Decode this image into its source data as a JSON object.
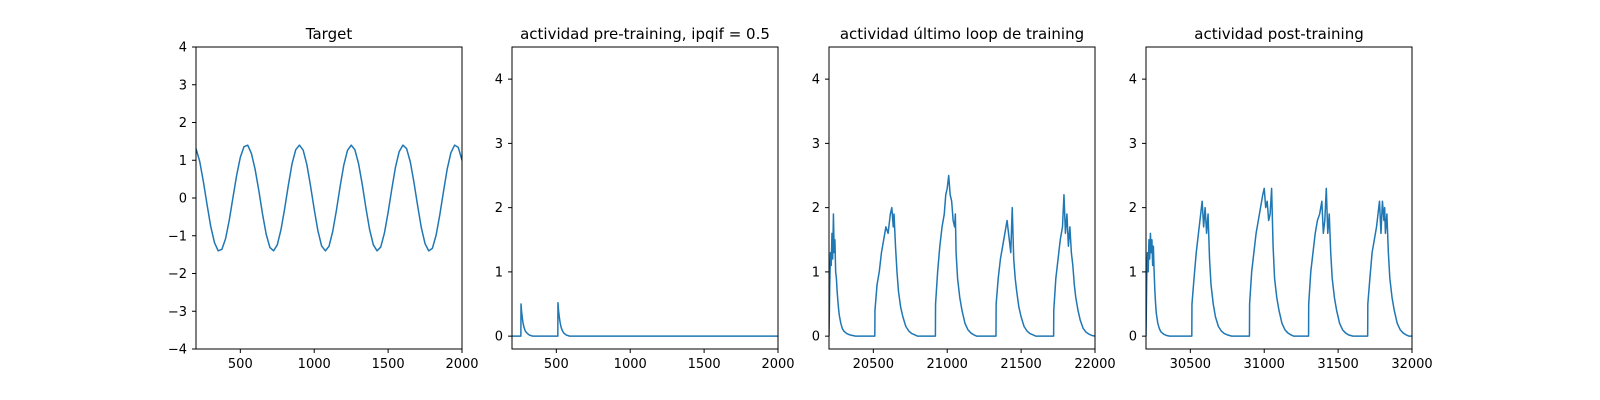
{
  "chart_data": [
    {
      "type": "line",
      "title": "Target",
      "xlim": [
        200,
        2000
      ],
      "ylim": [
        -4,
        4
      ],
      "xticks": [
        500,
        1000,
        1500,
        2000
      ],
      "yticks": [
        -4,
        -3,
        -2,
        -1,
        0,
        1,
        2,
        3,
        4
      ],
      "ytick_labels": [
        "−4",
        "−3",
        "−2",
        "−1",
        "0",
        "1",
        "2",
        "3",
        "4"
      ],
      "series": [
        {
          "color": "#1f77b4",
          "x": [
            200,
            225,
            250,
            275,
            300,
            325,
            350,
            375,
            400,
            425,
            450,
            475,
            500,
            525,
            550,
            575,
            600,
            625,
            650,
            675,
            700,
            725,
            750,
            775,
            800,
            825,
            850,
            875,
            900,
            925,
            950,
            975,
            1000,
            1025,
            1050,
            1075,
            1100,
            1125,
            1150,
            1175,
            1200,
            1225,
            1250,
            1275,
            1300,
            1325,
            1350,
            1375,
            1400,
            1425,
            1450,
            1475,
            1500,
            1525,
            1550,
            1575,
            1600,
            1625,
            1650,
            1675,
            1700,
            1725,
            1750,
            1775,
            1800,
            1825,
            1850,
            1875,
            1900,
            1925,
            1950,
            1975,
            2000
          ],
          "y": [
            1.31,
            0.97,
            0.43,
            -0.18,
            -0.76,
            -1.18,
            -1.4,
            -1.36,
            -1.08,
            -0.59,
            0.01,
            0.6,
            1.08,
            1.36,
            1.4,
            1.18,
            0.76,
            0.2,
            -0.42,
            -0.96,
            -1.31,
            -1.4,
            -1.24,
            -0.84,
            -0.28,
            0.34,
            0.91,
            1.28,
            1.4,
            1.27,
            0.89,
            0.32,
            -0.3,
            -0.87,
            -1.27,
            -1.4,
            -1.28,
            -0.89,
            -0.33,
            0.3,
            0.87,
            1.26,
            1.4,
            1.28,
            0.91,
            0.36,
            -0.27,
            -0.84,
            -1.24,
            -1.4,
            -1.3,
            -0.93,
            -0.38,
            0.24,
            0.82,
            1.23,
            1.4,
            1.31,
            0.96,
            0.41,
            -0.21,
            -0.79,
            -1.21,
            -1.4,
            -1.33,
            -0.98,
            -0.44,
            0.18,
            0.77,
            1.2,
            1.4,
            1.34,
            1.0
          ]
        }
      ]
    },
    {
      "type": "line",
      "title": "actividad pre-training, ipqif = 0.5",
      "xlim": [
        200,
        2000
      ],
      "ylim": [
        -0.2,
        4.5
      ],
      "xticks": [
        500,
        1000,
        1500,
        2000
      ],
      "yticks": [
        0,
        1,
        2,
        3,
        4
      ],
      "ytick_labels": [
        "0",
        "1",
        "2",
        "3",
        "4"
      ],
      "series": [
        {
          "color": "#1f77b4",
          "x": [
            200,
            260,
            261,
            265,
            270,
            275,
            280,
            285,
            290,
            300,
            310,
            320,
            340,
            510,
            511,
            515,
            520,
            525,
            530,
            535,
            540,
            550,
            560,
            570,
            590,
            2000
          ],
          "y": [
            0,
            0,
            0.5,
            0.38,
            0.28,
            0.2,
            0.15,
            0.11,
            0.08,
            0.05,
            0.03,
            0.015,
            0,
            0,
            0.52,
            0.4,
            0.3,
            0.22,
            0.16,
            0.12,
            0.09,
            0.05,
            0.03,
            0.015,
            0,
            0
          ]
        }
      ]
    },
    {
      "type": "line",
      "title": "actividad último loop de training",
      "xlim": [
        20200,
        22000
      ],
      "ylim": [
        -0.2,
        4.5
      ],
      "xticks": [
        20500,
        21000,
        21500,
        22000
      ],
      "yticks": [
        0,
        1,
        2,
        3,
        4
      ],
      "ytick_labels": [
        "0",
        "1",
        "2",
        "3",
        "4"
      ],
      "series": [
        {
          "color": "#1f77b4",
          "x": [
            20200,
            20205,
            20210,
            20215,
            20220,
            20225,
            20230,
            20235,
            20240,
            20245,
            20250,
            20255,
            20260,
            20265,
            20270,
            20280,
            20290,
            20300,
            20320,
            20340,
            20360,
            20380,
            20400,
            20420,
            20440,
            20460,
            20480,
            20510,
            20511,
            20525,
            20540,
            20555,
            20570,
            20585,
            20600,
            20615,
            20625,
            20635,
            20640,
            20650,
            20660,
            20670,
            20685,
            20700,
            20720,
            20740,
            20760,
            20780,
            20800,
            20830,
            20860,
            20920,
            20921,
            20935,
            20950,
            20965,
            20980,
            20990,
            21000,
            21010,
            21020,
            21030,
            21040,
            21050,
            21055,
            21060,
            21070,
            21085,
            21100,
            21120,
            21140,
            21160,
            21180,
            21200,
            21230,
            21260,
            21330,
            21331,
            21345,
            21360,
            21375,
            21390,
            21405,
            21420,
            21430,
            21440,
            21450,
            21460,
            21470,
            21485,
            21500,
            21520,
            21540,
            21560,
            21580,
            21600,
            21630,
            21660,
            21720,
            21721,
            21735,
            21750,
            21765,
            21780,
            21790,
            21800,
            21810,
            21820,
            21830,
            21840,
            21850,
            21860,
            21870,
            21885,
            21900,
            21920,
            21940,
            21960,
            21980,
            22000
          ],
          "y": [
            0,
            0.8,
            1.3,
            1.1,
            1.6,
            1.2,
            1.9,
            1.3,
            1.5,
            1.0,
            0.9,
            0.7,
            0.55,
            0.42,
            0.32,
            0.2,
            0.12,
            0.08,
            0.04,
            0.02,
            0.01,
            0,
            0,
            0,
            0,
            0,
            0,
            0,
            0.4,
            0.8,
            1.0,
            1.3,
            1.5,
            1.7,
            1.6,
            1.9,
            2.0,
            1.7,
            1.9,
            1.4,
            1.0,
            0.7,
            0.45,
            0.3,
            0.15,
            0.08,
            0.04,
            0.02,
            0,
            0,
            0,
            0,
            0.5,
            1.0,
            1.4,
            1.7,
            1.9,
            2.2,
            2.3,
            2.5,
            2.2,
            2.1,
            1.8,
            1.7,
            1.9,
            1.3,
            0.9,
            0.6,
            0.4,
            0.2,
            0.1,
            0.05,
            0.02,
            0,
            0,
            0,
            0,
            0.5,
            0.9,
            1.2,
            1.4,
            1.6,
            1.8,
            1.5,
            1.3,
            2.0,
            1.2,
            0.9,
            0.7,
            0.45,
            0.3,
            0.15,
            0.08,
            0.04,
            0.02,
            0,
            0,
            0,
            0,
            0.4,
            0.9,
            1.2,
            1.5,
            1.7,
            2.2,
            1.6,
            1.9,
            1.4,
            1.7,
            1.3,
            1.1,
            0.8,
            0.6,
            0.4,
            0.25,
            0.12,
            0.06,
            0.03,
            0.01,
            0
          ]
        }
      ]
    },
    {
      "type": "line",
      "title": "actividad post-training",
      "xlim": [
        30200,
        32000
      ],
      "ylim": [
        -0.2,
        4.5
      ],
      "xticks": [
        30500,
        31000,
        31500,
        32000
      ],
      "yticks": [
        0,
        1,
        2,
        3,
        4
      ],
      "ytick_labels": [
        "0",
        "1",
        "2",
        "3",
        "4"
      ],
      "series": [
        {
          "color": "#1f77b4",
          "x": [
            30200,
            30205,
            30210,
            30215,
            30220,
            30225,
            30230,
            30235,
            30240,
            30245,
            30250,
            30255,
            30260,
            30265,
            30270,
            30280,
            30290,
            30300,
            30320,
            30340,
            30360,
            30380,
            30400,
            30420,
            30440,
            30460,
            30480,
            30500,
            30510,
            30511,
            30525,
            30540,
            30555,
            30570,
            30580,
            30590,
            30600,
            30610,
            30620,
            30630,
            30640,
            30655,
            30670,
            30690,
            30710,
            30730,
            30750,
            30780,
            30810,
            30900,
            30901,
            30915,
            30930,
            30945,
            30960,
            30975,
            30990,
            31000,
            31010,
            31020,
            31030,
            31040,
            31050,
            31060,
            31070,
            31085,
            31100,
            31120,
            31140,
            31160,
            31180,
            31200,
            31230,
            31260,
            31300,
            31301,
            31315,
            31330,
            31345,
            31360,
            31375,
            31390,
            31400,
            31410,
            31420,
            31430,
            31440,
            31450,
            31460,
            31475,
            31490,
            31510,
            31530,
            31550,
            31570,
            31600,
            31630,
            31700,
            31701,
            31715,
            31730,
            31745,
            31760,
            31770,
            31780,
            31790,
            31800,
            31810,
            31815,
            31820,
            31830,
            31840,
            31850,
            31865,
            31880,
            31900,
            31920,
            31940,
            31960,
            31980,
            32000
          ],
          "y": [
            0,
            0.9,
            1.3,
            1.0,
            1.5,
            1.2,
            1.6,
            1.3,
            1.5,
            1.1,
            1.4,
            1.0,
            0.7,
            0.5,
            0.35,
            0.2,
            0.12,
            0.07,
            0.03,
            0.01,
            0,
            0,
            0,
            0,
            0,
            0,
            0,
            0,
            0,
            0.5,
            0.9,
            1.3,
            1.6,
            1.9,
            2.1,
            1.7,
            2.0,
            1.6,
            1.9,
            1.2,
            0.8,
            0.5,
            0.3,
            0.15,
            0.08,
            0.04,
            0.02,
            0,
            0,
            0,
            0.5,
            1.0,
            1.3,
            1.6,
            1.8,
            2.0,
            2.2,
            2.3,
            2.0,
            2.1,
            1.8,
            1.9,
            2.3,
            1.4,
            0.9,
            0.6,
            0.4,
            0.2,
            0.1,
            0.05,
            0.02,
            0,
            0,
            0,
            0,
            0.5,
            1.0,
            1.3,
            1.6,
            1.8,
            1.9,
            2.1,
            1.6,
            1.8,
            2.3,
            1.6,
            1.9,
            1.3,
            0.9,
            0.6,
            0.4,
            0.2,
            0.1,
            0.05,
            0.02,
            0,
            0,
            0,
            0.5,
            0.9,
            1.3,
            1.5,
            1.7,
            1.9,
            2.1,
            1.6,
            2.1,
            1.8,
            2.0,
            1.6,
            1.9,
            1.3,
            0.9,
            0.6,
            0.4,
            0.2,
            0.1,
            0.05,
            0.02,
            0,
            0
          ]
        }
      ]
    }
  ]
}
